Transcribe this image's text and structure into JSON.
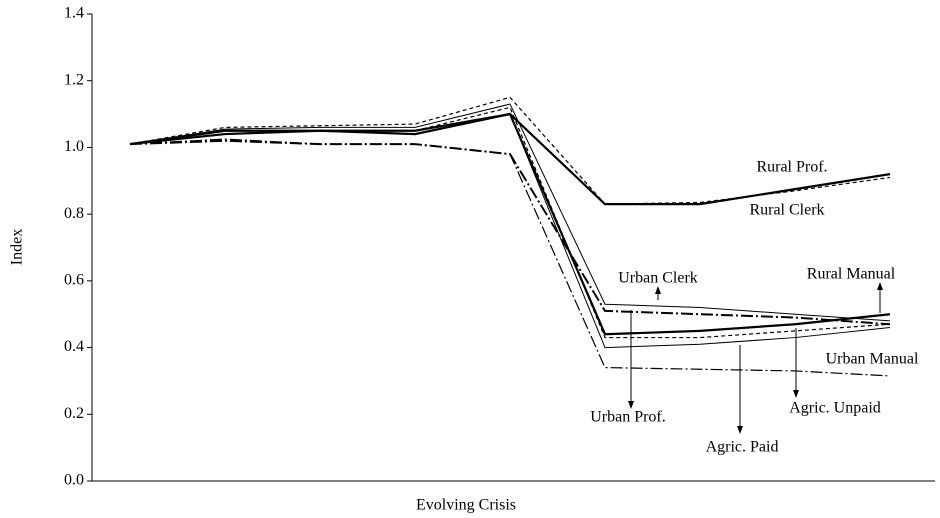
{
  "chart_data": {
    "type": "line",
    "x_label": "Evolving Crisis",
    "y_label": "Index",
    "categories": [
      null,
      null,
      null,
      null,
      null,
      null,
      null,
      null,
      null
    ],
    "ylim": [
      0,
      1.4
    ],
    "yticks": [
      {
        "value": 0,
        "label": "0.0"
      },
      0.2,
      0.4,
      0.6,
      0.8,
      {
        "value": 1,
        "label": "1.0"
      },
      1.2,
      1.4
    ],
    "grid": false,
    "series": [
      {
        "name": "Rural Prof.",
        "color": "#000000",
        "dash": "solid",
        "width": 2.2,
        "values": [
          1.01,
          1.05,
          1.05,
          1.05,
          1.1,
          0.83,
          0.83,
          0.875,
          0.92
        ]
      },
      {
        "name": "Rural Clerk",
        "color": "#000000",
        "dash": "dashed",
        "width": 1.2,
        "values": [
          1.01,
          1.06,
          1.065,
          1.07,
          1.15,
          0.83,
          0.835,
          0.87,
          0.91
        ]
      },
      {
        "name": "Urban Clerk",
        "color": "#000000",
        "dash": "solid",
        "width": 1,
        "values": [
          1.01,
          1.055,
          1.06,
          1.06,
          1.13,
          0.53,
          0.52,
          0.5,
          0.48
        ]
      },
      {
        "name": "Urban Prof.",
        "color": "#000000",
        "dash": "dash-dot",
        "width": 2,
        "values": [
          1.01,
          1.02,
          1.01,
          1.01,
          0.98,
          0.51,
          0.5,
          0.49,
          0.47
        ]
      },
      {
        "name": "Rural Manual",
        "color": "#000000",
        "dash": "solid",
        "width": 2.2,
        "values": [
          1.01,
          1.04,
          1.05,
          1.04,
          1.1,
          0.44,
          0.45,
          0.47,
          0.5
        ]
      },
      {
        "name": "Agric. Paid",
        "color": "#000000",
        "dash": "dashed",
        "width": 1.2,
        "values": [
          1.01,
          1.05,
          1.05,
          1.05,
          1.12,
          0.43,
          0.43,
          0.45,
          0.47
        ]
      },
      {
        "name": "Urban Manual",
        "color": "#000000",
        "dash": "solid",
        "width": 1,
        "values": [
          1.01,
          1.04,
          1.05,
          1.05,
          1.1,
          0.4,
          0.41,
          0.43,
          0.46
        ]
      },
      {
        "name": "Agric. Unpaid",
        "color": "#000000",
        "dash": "dash-dot",
        "width": 1.2,
        "values": [
          1.01,
          1.025,
          1.01,
          1.01,
          0.98,
          0.34,
          0.335,
          0.33,
          0.315
        ]
      }
    ]
  }
}
